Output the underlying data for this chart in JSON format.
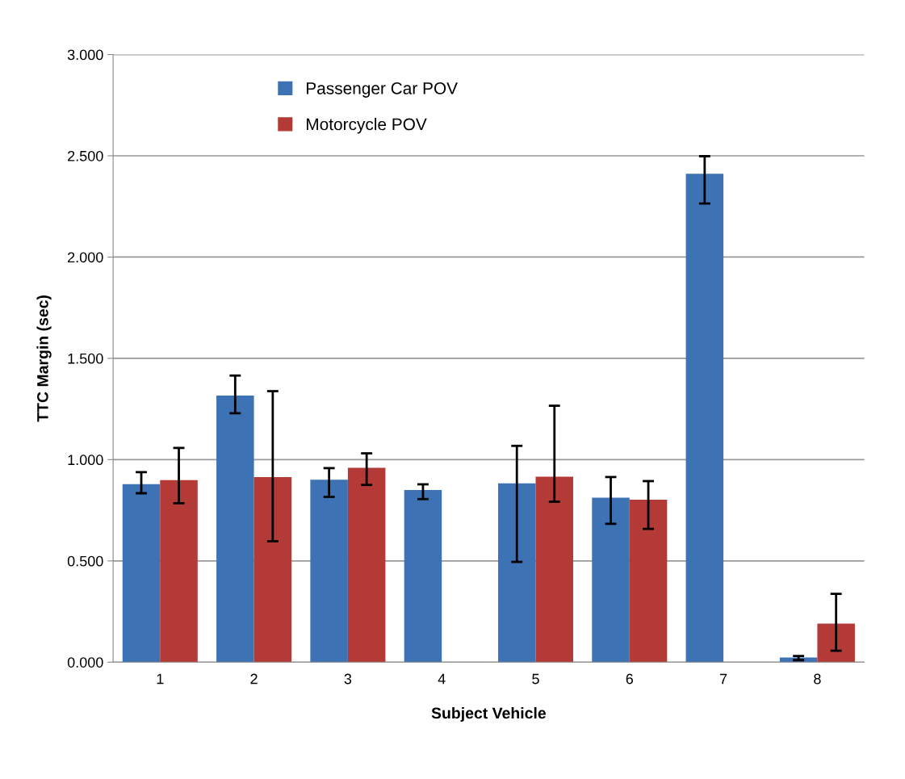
{
  "chart_data": {
    "type": "bar",
    "xlabel": "Subject Vehicle",
    "ylabel": "TTC Margin (sec)",
    "categories": [
      "1",
      "2",
      "3",
      "4",
      "5",
      "6",
      "7",
      "8"
    ],
    "series": [
      {
        "name": "Passenger Car POV",
        "color": "#3d72b4",
        "values": [
          0.879,
          1.316,
          0.901,
          0.85,
          0.883,
          0.812,
          2.411,
          0.023
        ],
        "errors": [
          [
            0.834,
            0.938
          ],
          [
            1.229,
            1.415
          ],
          [
            0.816,
            0.958
          ],
          [
            0.805,
            0.878
          ],
          [
            0.495,
            1.068
          ],
          [
            0.683,
            0.914
          ],
          [
            2.264,
            2.498
          ],
          [
            0.01,
            0.03
          ]
        ]
      },
      {
        "name": "Motorcycle POV",
        "color": "#b33a36",
        "values": [
          0.899,
          0.914,
          0.96,
          null,
          0.916,
          0.802,
          null,
          0.19
        ],
        "errors": [
          [
            0.785,
            1.058
          ],
          [
            0.597,
            1.338
          ],
          [
            0.875,
            1.031
          ],
          null,
          [
            0.792,
            1.266
          ],
          [
            0.658,
            0.894
          ],
          null,
          [
            0.056,
            0.337
          ]
        ]
      }
    ],
    "ylim": [
      0,
      3
    ],
    "yticks": [
      {
        "value": 0,
        "label": "0.000"
      },
      {
        "value": 0.5,
        "label": "0.500"
      },
      {
        "value": 1,
        "label": "1.000"
      },
      {
        "value": 1.5,
        "label": "1.500"
      },
      {
        "value": 2,
        "label": "2.000"
      },
      {
        "value": 2.5,
        "label": "2.500"
      },
      {
        "value": 3,
        "label": "3.000"
      }
    ],
    "grid": "y",
    "legend": "top left"
  }
}
